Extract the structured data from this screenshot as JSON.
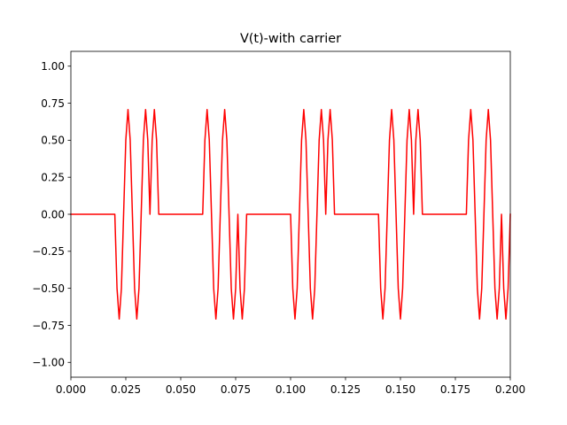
{
  "chart_data": {
    "type": "line",
    "title": "V(t)-with carrier",
    "xlabel": "",
    "ylabel": "",
    "xlim": [
      0.0,
      0.2
    ],
    "ylim": [
      -1.1,
      1.1
    ],
    "grid": false,
    "xticks": [
      0.0,
      0.025,
      0.05,
      0.075,
      0.1,
      0.125,
      0.15,
      0.175,
      0.2
    ],
    "xtick_labels": [
      "0.000",
      "0.025",
      "0.050",
      "0.075",
      "0.100",
      "0.125",
      "0.150",
      "0.175",
      "0.200"
    ],
    "yticks": [
      -1.0,
      -0.75,
      -0.5,
      -0.25,
      0.0,
      0.25,
      0.5,
      0.75,
      1.0
    ],
    "ytick_labels": [
      "−1.00",
      "−0.75",
      "−0.50",
      "−0.25",
      "0.00",
      "0.25",
      "0.50",
      "0.75",
      "1.00"
    ],
    "series": [
      {
        "color": "#ff0000",
        "x": [
          0.0,
          0.02,
          0.021,
          0.022,
          0.023,
          0.024,
          0.025,
          0.026,
          0.027,
          0.028,
          0.029,
          0.03,
          0.031,
          0.032,
          0.033,
          0.034,
          0.035,
          0.036,
          0.037,
          0.038,
          0.039,
          0.04,
          0.06,
          0.061,
          0.062,
          0.063,
          0.064,
          0.065,
          0.066,
          0.067,
          0.068,
          0.069,
          0.07,
          0.071,
          0.072,
          0.073,
          0.074,
          0.075,
          0.076,
          0.077,
          0.078,
          0.079,
          0.08,
          0.1,
          0.101,
          0.102,
          0.103,
          0.104,
          0.105,
          0.106,
          0.107,
          0.108,
          0.109,
          0.11,
          0.111,
          0.112,
          0.113,
          0.114,
          0.115,
          0.116,
          0.117,
          0.118,
          0.119,
          0.12,
          0.14,
          0.141,
          0.142,
          0.143,
          0.144,
          0.145,
          0.146,
          0.147,
          0.148,
          0.149,
          0.15,
          0.151,
          0.152,
          0.153,
          0.154,
          0.155,
          0.156,
          0.157,
          0.158,
          0.159,
          0.16,
          0.18,
          0.181,
          0.182,
          0.183,
          0.184,
          0.185,
          0.186,
          0.187,
          0.188,
          0.189,
          0.19,
          0.191,
          0.192,
          0.193,
          0.194,
          0.195,
          0.196,
          0.197,
          0.198,
          0.199,
          0.2
        ],
        "y": [
          0.0,
          0.0,
          -0.5,
          -0.707,
          -0.5,
          0.0,
          0.5,
          0.707,
          0.5,
          0.0,
          -0.5,
          -0.707,
          -0.5,
          0.0,
          0.5,
          0.707,
          0.5,
          0.0,
          0.5,
          0.707,
          0.5,
          0.0,
          0.0,
          0.5,
          0.707,
          0.5,
          0.0,
          -0.5,
          -0.707,
          -0.5,
          0.0,
          0.5,
          0.707,
          0.5,
          0.0,
          -0.5,
          -0.707,
          -0.5,
          0.0,
          -0.5,
          -0.707,
          -0.5,
          0.0,
          0.0,
          -0.5,
          -0.707,
          -0.5,
          0.0,
          0.5,
          0.707,
          0.5,
          0.0,
          -0.5,
          -0.707,
          -0.5,
          0.0,
          0.5,
          0.707,
          0.5,
          0.0,
          0.5,
          0.707,
          0.5,
          0.0,
          0.0,
          -0.5,
          -0.707,
          -0.5,
          0.0,
          0.5,
          0.707,
          0.5,
          0.0,
          -0.5,
          -0.707,
          -0.5,
          0.0,
          0.5,
          0.707,
          0.5,
          0.0,
          0.5,
          0.707,
          0.5,
          0.0,
          0.0,
          0.5,
          0.707,
          0.5,
          0.0,
          -0.5,
          -0.707,
          -0.5,
          0.0,
          0.5,
          0.707,
          0.5,
          0.0,
          -0.5,
          -0.707,
          -0.5,
          0.0,
          -0.5,
          -0.707,
          -0.5,
          0.0
        ]
      }
    ]
  }
}
